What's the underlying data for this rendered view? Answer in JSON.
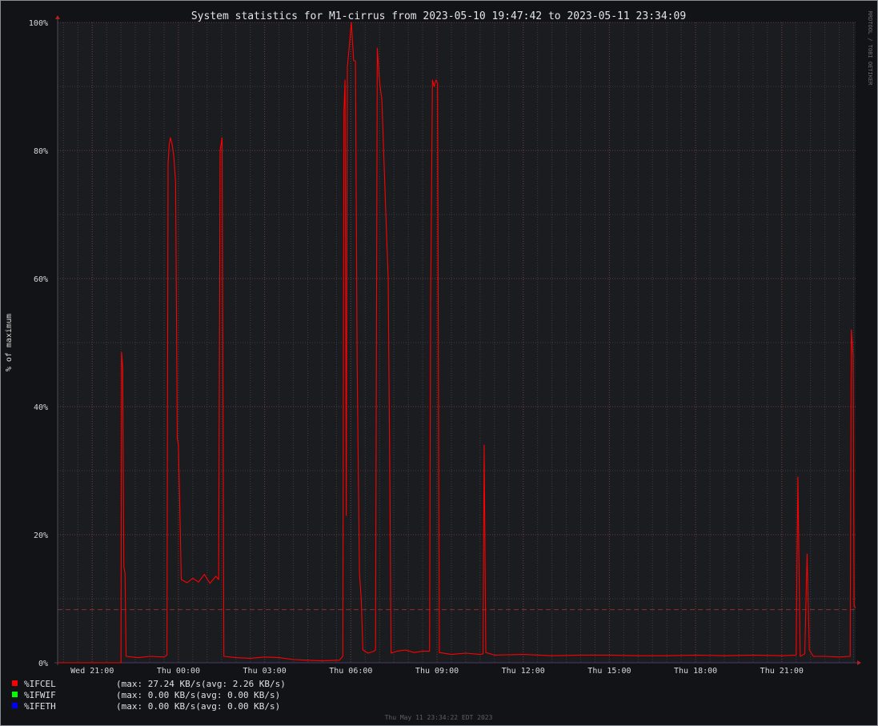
{
  "chart_data": {
    "type": "line",
    "title": "System statistics for M1-cirrus from 2023-05-10 19:47:42 to 2023-05-11 23:34:09",
    "ylabel": "% of maximum",
    "xlabel": "",
    "y_ticks": [
      "0%",
      "20%",
      "40%",
      "60%",
      "80%",
      "100%"
    ],
    "y_tick_values": [
      0,
      20,
      40,
      60,
      80,
      100
    ],
    "ylim": [
      0,
      100
    ],
    "x_ticks": [
      "Wed 21:00",
      "Thu 00:00",
      "Thu 03:00",
      "Thu 06:00",
      "Thu 09:00",
      "Thu 12:00",
      "Thu 15:00",
      "Thu 18:00",
      "Thu 21:00"
    ],
    "x_tick_hours": [
      21,
      24,
      27,
      30,
      33,
      36,
      39,
      42,
      45
    ],
    "xlim_hours": [
      19.795,
      47.569
    ],
    "reference_line": 8.3,
    "grid": true,
    "watermark": "RRDTOOL / TOBI OETIKER",
    "footer": "Thu May 11 23:34:22 EDT 2023",
    "series": [
      {
        "name": "%IFCEL",
        "color": "#ff0000",
        "max_text": "(max: 27.24 KB/s",
        "avg_text": "(avg: 2.26 KB/s)",
        "points": [
          [
            19.8,
            0
          ],
          [
            22.0,
            0
          ],
          [
            22.02,
            48.5
          ],
          [
            22.06,
            46
          ],
          [
            22.1,
            15
          ],
          [
            22.14,
            14
          ],
          [
            22.18,
            1
          ],
          [
            22.6,
            0.8
          ],
          [
            23.0,
            1.0
          ],
          [
            23.5,
            0.9
          ],
          [
            23.6,
            1.2
          ],
          [
            23.64,
            78
          ],
          [
            23.68,
            81
          ],
          [
            23.72,
            82
          ],
          [
            23.78,
            81
          ],
          [
            23.84,
            79
          ],
          [
            23.9,
            75
          ],
          [
            23.96,
            35
          ],
          [
            24.0,
            34
          ],
          [
            24.05,
            24
          ],
          [
            24.1,
            13
          ],
          [
            24.3,
            12.5
          ],
          [
            24.5,
            13.2
          ],
          [
            24.7,
            12.6
          ],
          [
            24.9,
            13.8
          ],
          [
            25.1,
            12.4
          ],
          [
            25.3,
            13.5
          ],
          [
            25.4,
            13
          ],
          [
            25.45,
            80
          ],
          [
            25.52,
            82
          ],
          [
            25.58,
            1
          ],
          [
            26.0,
            0.8
          ],
          [
            26.5,
            0.7
          ],
          [
            27.0,
            0.9
          ],
          [
            27.5,
            0.8
          ],
          [
            28.0,
            0.5
          ],
          [
            29.0,
            0.3
          ],
          [
            29.6,
            0.4
          ],
          [
            29.72,
            1
          ],
          [
            29.76,
            86
          ],
          [
            29.8,
            91
          ],
          [
            29.84,
            23
          ],
          [
            29.88,
            93
          ],
          [
            29.94,
            96
          ],
          [
            30.02,
            100
          ],
          [
            30.1,
            94
          ],
          [
            30.16,
            94
          ],
          [
            30.22,
            47
          ],
          [
            30.3,
            14
          ],
          [
            30.36,
            10
          ],
          [
            30.42,
            2
          ],
          [
            30.6,
            1.5
          ],
          [
            30.8,
            1.8
          ],
          [
            30.86,
            2
          ],
          [
            30.92,
            96
          ],
          [
            30.98,
            92
          ],
          [
            31.02,
            90
          ],
          [
            31.08,
            88
          ],
          [
            31.14,
            80
          ],
          [
            31.22,
            70
          ],
          [
            31.3,
            60
          ],
          [
            31.36,
            28
          ],
          [
            31.4,
            1.5
          ],
          [
            31.6,
            1.8
          ],
          [
            31.9,
            2
          ],
          [
            32.2,
            1.6
          ],
          [
            32.5,
            1.8
          ],
          [
            32.74,
            1.8
          ],
          [
            32.78,
            57
          ],
          [
            32.84,
            91
          ],
          [
            32.9,
            90
          ],
          [
            32.96,
            91
          ],
          [
            33.02,
            90.5
          ],
          [
            33.08,
            1.6
          ],
          [
            33.5,
            1.3
          ],
          [
            34.0,
            1.5
          ],
          [
            34.5,
            1.3
          ],
          [
            34.6,
            1.4
          ],
          [
            34.64,
            34
          ],
          [
            34.7,
            1.6
          ],
          [
            35.0,
            1.2
          ],
          [
            36.0,
            1.3
          ],
          [
            37.0,
            1.1
          ],
          [
            38.0,
            1.2
          ],
          [
            39.0,
            1.2
          ],
          [
            40.0,
            1.1
          ],
          [
            41.0,
            1.1
          ],
          [
            42.0,
            1.2
          ],
          [
            43.0,
            1.1
          ],
          [
            44.0,
            1.2
          ],
          [
            45.0,
            1.1
          ],
          [
            45.5,
            1.2
          ],
          [
            45.56,
            29
          ],
          [
            45.64,
            1.0
          ],
          [
            45.8,
            1.4
          ],
          [
            45.88,
            17
          ],
          [
            45.96,
            2
          ],
          [
            46.1,
            1
          ],
          [
            46.5,
            1.0
          ],
          [
            47.0,
            0.9
          ],
          [
            47.38,
            1.0
          ],
          [
            47.42,
            52
          ],
          [
            47.48,
            48
          ],
          [
            47.52,
            9
          ],
          [
            47.56,
            8.5
          ]
        ]
      },
      {
        "name": "%IFWIF",
        "color": "#00ff00",
        "max_text": "(max: 0.00 KB/s",
        "avg_text": "(avg: 0.00 KB/s)",
        "points": []
      },
      {
        "name": "%IFETH",
        "color": "#0000ff",
        "max_text": "(max: 0.00 KB/s",
        "avg_text": "(avg: 0.00 KB/s)",
        "points": []
      }
    ]
  }
}
